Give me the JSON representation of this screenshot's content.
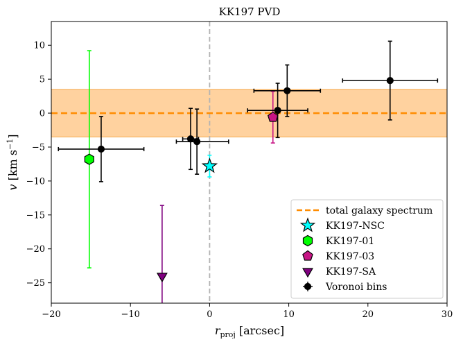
{
  "chart_data": {
    "type": "scatter",
    "title": "KK197 PVD",
    "xlabel": {
      "main": "r",
      "sub": "proj",
      "unit": " [arcsec]"
    },
    "ylabel": {
      "main": "v",
      "unit": " [km s",
      "sup": "−1",
      "close": "]"
    },
    "xlim": [
      -20,
      30
    ],
    "ylim": [
      -28,
      13.5
    ],
    "xticks": [
      -20,
      -10,
      0,
      10,
      20,
      30
    ],
    "yticks": [
      -25,
      -20,
      -15,
      -10,
      -5,
      0,
      5,
      10
    ],
    "xtick_labels": [
      "−20",
      "−10",
      "0",
      "10",
      "20",
      "30"
    ],
    "ytick_labels": [
      "−25",
      "−20",
      "−15",
      "−10",
      "−5",
      "0",
      "5",
      "10"
    ],
    "grid": false,
    "legend_position": "lower-right",
    "vertical_reference_x": 0,
    "total_galaxy_spectrum": {
      "value": 0.0,
      "band": [
        -3.5,
        3.5
      ],
      "color": "#ff8c00",
      "band_color": "#ffd09a"
    },
    "series": [
      {
        "name": "total galaxy spectrum",
        "kind": "line",
        "color": "#ff8c00"
      },
      {
        "name": "KK197-NSC",
        "kind": "point",
        "marker": "star",
        "color": "#00ffff",
        "points": [
          {
            "x": 0.0,
            "y": -7.8,
            "yerr": [
              1.6,
              1.6
            ]
          }
        ]
      },
      {
        "name": "KK197-01",
        "kind": "point",
        "marker": "hexagon",
        "color": "#00ff00",
        "points": [
          {
            "x": -15.2,
            "y": -6.8,
            "yerr": [
              16.0,
              16.0
            ]
          }
        ]
      },
      {
        "name": "KK197-03",
        "kind": "point",
        "marker": "pentagon",
        "color": "#c71585",
        "points": [
          {
            "x": 8.0,
            "y": -0.6,
            "yerr": [
              3.8,
              3.8
            ]
          }
        ]
      },
      {
        "name": "KK197-SA",
        "kind": "point",
        "marker": "triangle-down",
        "color": "#800080",
        "points": [
          {
            "x": -6.0,
            "y": -24.0,
            "yerr": [
              4.5,
              10.4
            ]
          }
        ]
      },
      {
        "name": "Voronoi bins",
        "kind": "point",
        "marker": "circle",
        "color": "#000000",
        "points": [
          {
            "x": -13.7,
            "y": -5.3,
            "xerr": [
              5.4,
              5.4
            ],
            "yerr": [
              4.8,
              4.8
            ]
          },
          {
            "x": -2.4,
            "y": -3.8,
            "xerr": [
              1.0,
              1.0
            ],
            "yerr": [
              4.5,
              4.5
            ]
          },
          {
            "x": -1.6,
            "y": -4.2,
            "xerr": [
              2.6,
              4.0
            ],
            "yerr": [
              4.8,
              4.8
            ]
          },
          {
            "x": 8.6,
            "y": 0.4,
            "xerr": [
              3.8,
              3.8
            ],
            "yerr": [
              4.0,
              4.0
            ]
          },
          {
            "x": 9.8,
            "y": 3.3,
            "xerr": [
              4.2,
              4.2
            ],
            "yerr": [
              3.8,
              3.8
            ]
          },
          {
            "x": 22.8,
            "y": 4.8,
            "xerr": [
              6.0,
              6.0
            ],
            "yerr": [
              5.8,
              5.8
            ]
          }
        ]
      }
    ]
  }
}
